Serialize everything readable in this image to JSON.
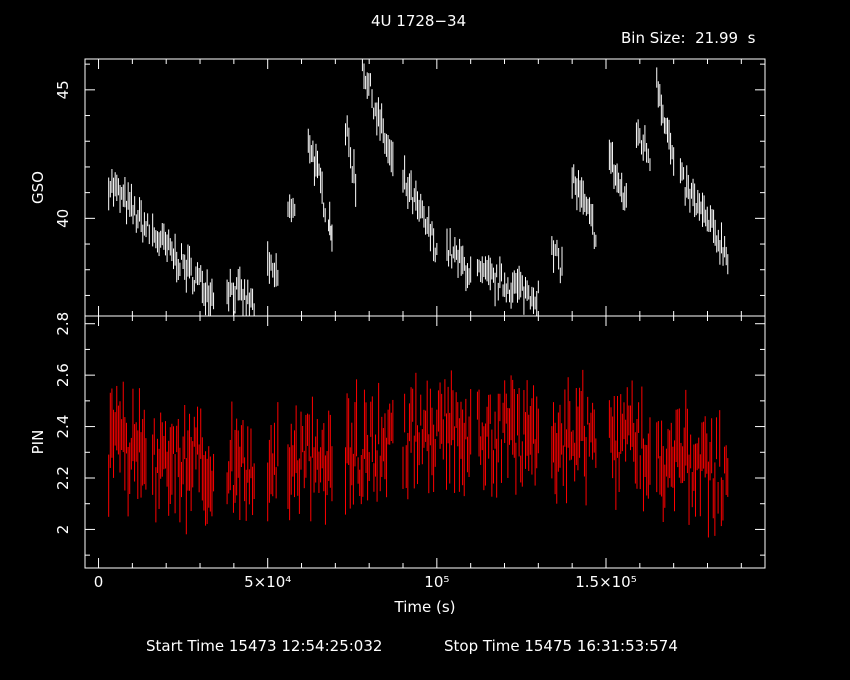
{
  "header": {
    "title": "4U 1728−34",
    "bin_size": "Bin Size:  21.99  s"
  },
  "footer": {
    "start_time": "Start Time 15473 12:54:25:032",
    "stop_time": "Stop Time 15475 16:31:53:574"
  },
  "colors": {
    "background": "#000000",
    "axes": "#ffffff",
    "gso": "#ffffff",
    "pin": "#ff0000"
  },
  "chart_data": [
    {
      "type": "line",
      "title": "4U 1728−34",
      "ylabel": "GSO",
      "xlabel": "",
      "xlim": [
        -4000,
        197000
      ],
      "ylim": [
        36.2,
        46.2
      ],
      "ytick_values": [
        40,
        45
      ],
      "ytick_labels": [
        "40",
        "45"
      ],
      "segments": [
        {
          "x": [
            3000,
            15000
          ],
          "y": [
            41.4,
            39.5
          ]
        },
        {
          "x": [
            16000,
            34000
          ],
          "y": [
            39.4,
            37.0
          ]
        },
        {
          "x": [
            38000,
            46000
          ],
          "y": [
            37.4,
            36.6
          ]
        },
        {
          "x": [
            50000,
            53000
          ],
          "y": [
            38.0,
            37.7
          ]
        },
        {
          "x": [
            56000,
            58000
          ],
          "y": [
            40.4,
            40.1
          ]
        },
        {
          "x": [
            62000,
            67000
          ],
          "y": [
            43.2,
            40.5
          ]
        },
        {
          "x": [
            68000,
            69000
          ],
          "y": [
            40.1,
            39.5
          ]
        },
        {
          "x": [
            73000,
            76000
          ],
          "y": [
            43.5,
            41.4
          ]
        },
        {
          "x": [
            78000,
            87000
          ],
          "y": [
            46.0,
            42.0
          ]
        },
        {
          "x": [
            90000,
            100000
          ],
          "y": [
            41.5,
            38.9
          ]
        },
        {
          "x": [
            103000,
            110000
          ],
          "y": [
            38.8,
            37.9
          ]
        },
        {
          "x": [
            112000,
            130000
          ],
          "y": [
            37.8,
            37.0
          ]
        },
        {
          "x": [
            134000,
            137000
          ],
          "y": [
            38.7,
            38.1
          ]
        },
        {
          "x": [
            140000,
            147000
          ],
          "y": [
            41.6,
            39.4
          ]
        },
        {
          "x": [
            151000,
            156000
          ],
          "y": [
            42.4,
            40.5
          ]
        },
        {
          "x": [
            159000,
            163000
          ],
          "y": [
            43.4,
            42.4
          ]
        },
        {
          "x": [
            165000,
            170000
          ],
          "y": [
            45.5,
            42.1
          ]
        },
        {
          "x": [
            172000,
            186000
          ],
          "y": [
            41.5,
            38.6
          ]
        }
      ],
      "grid": false
    },
    {
      "type": "line",
      "title": "",
      "ylabel": "PIN",
      "xlabel": "Time (s)",
      "xlim": [
        -4000,
        197000
      ],
      "ylim": [
        1.85,
        2.83
      ],
      "ytick_values": [
        2,
        2.2,
        2.4,
        2.6,
        2.8
      ],
      "ytick_labels": [
        "2",
        "2.2",
        "2.4",
        "2.6",
        "2.8"
      ],
      "xtick_values": [
        0,
        50000,
        100000,
        150000
      ],
      "xtick_labels": [
        "0",
        "5×10⁴",
        "10⁵",
        "1.5×10⁵"
      ],
      "segments": [
        {
          "x": [
            3000,
            14000
          ],
          "y": [
            2.3,
            2.33
          ]
        },
        {
          "x": [
            16000,
            34000
          ],
          "y": [
            2.24,
            2.26
          ]
        },
        {
          "x": [
            38000,
            46000
          ],
          "y": [
            2.24,
            2.26
          ]
        },
        {
          "x": [
            50000,
            53000
          ],
          "y": [
            2.26,
            2.26
          ]
        },
        {
          "x": [
            56000,
            69000
          ],
          "y": [
            2.26,
            2.28
          ]
        },
        {
          "x": [
            73000,
            87000
          ],
          "y": [
            2.3,
            2.33
          ]
        },
        {
          "x": [
            90000,
            110000
          ],
          "y": [
            2.36,
            2.4
          ]
        },
        {
          "x": [
            112000,
            130000
          ],
          "y": [
            2.38,
            2.34
          ]
        },
        {
          "x": [
            134000,
            147000
          ],
          "y": [
            2.36,
            2.35
          ]
        },
        {
          "x": [
            151000,
            163000
          ],
          "y": [
            2.33,
            2.34
          ]
        },
        {
          "x": [
            165000,
            186000
          ],
          "y": [
            2.3,
            2.22
          ]
        }
      ],
      "grid": false
    }
  ]
}
